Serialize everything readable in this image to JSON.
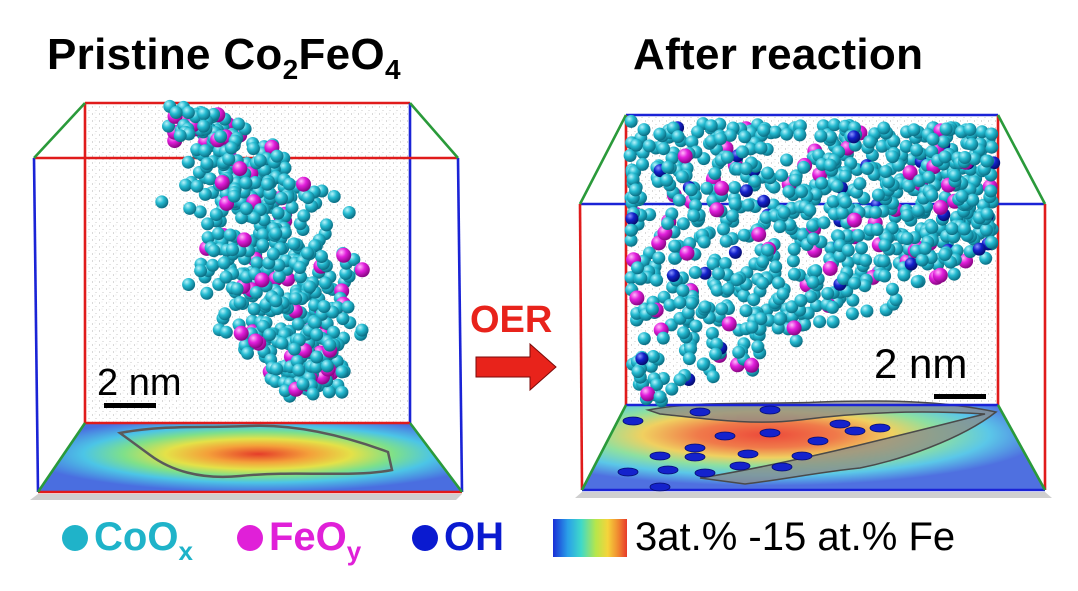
{
  "titles": {
    "left_main": "Pristine Co",
    "left_sub1": "2",
    "left_mid": "FeO",
    "left_sub2": "4",
    "right": "After reaction"
  },
  "arrow_label": "OER",
  "scale_bars": {
    "left": "2 nm",
    "right": "2 nm"
  },
  "legend": {
    "coox_main": "CoO",
    "coox_sub": "x",
    "feoy_main": "FeO",
    "feoy_sub": "y",
    "oh": "OH",
    "colorbar": "3at.% -15 at.% Fe"
  },
  "colors": {
    "coox": "#1fb3c9",
    "feoy": "#e020d8",
    "oh": "#0a1ad0",
    "arrow": "#e8231b",
    "box_red": "#e01b1b",
    "box_blue": "#1a23d6",
    "box_green": "#2a9a3a"
  }
}
